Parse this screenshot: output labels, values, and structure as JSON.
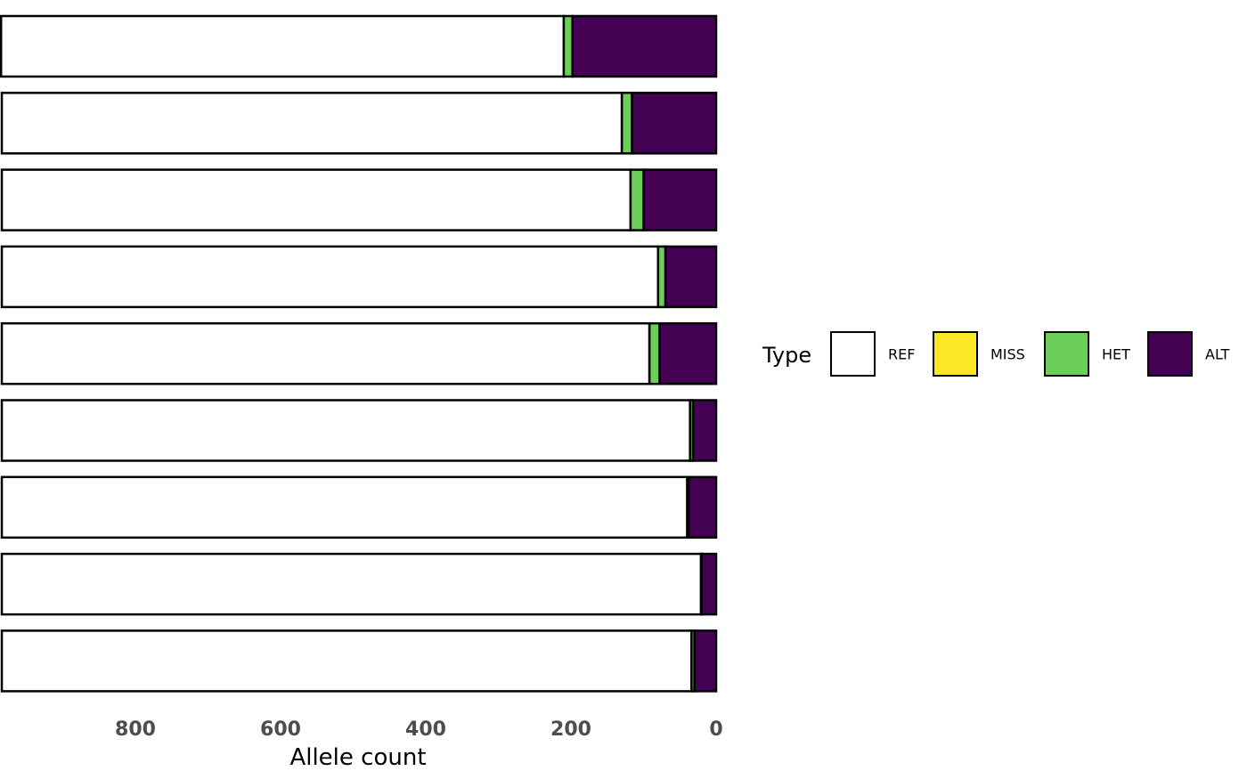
{
  "chart_data": {
    "type": "bar",
    "orientation": "horizontal",
    "stacked": true,
    "x_reversed": true,
    "xlabel": "Allele count",
    "ylabel": "",
    "xlim": [
      0,
      984
    ],
    "x_ticks": [
      800,
      600,
      400,
      200,
      0
    ],
    "grid": false,
    "legend": {
      "title": "Type",
      "placement": "right",
      "entries": [
        {
          "label": "REF",
          "color": "#FFFFFF"
        },
        {
          "label": "MISS",
          "color": "#FDE725"
        },
        {
          "label": "HET",
          "color": "#6DCD59"
        },
        {
          "label": "ALT",
          "color": "#440154"
        }
      ]
    },
    "stack_order_from_zero": [
      "ALT",
      "MISS",
      "HET",
      "REF"
    ],
    "bars": [
      {
        "ALT": 198,
        "MISS": 0,
        "HET": 12,
        "REF": 775
      },
      {
        "ALT": 116,
        "MISS": 0,
        "HET": 14,
        "REF": 854
      },
      {
        "ALT": 100,
        "MISS": 0,
        "HET": 18,
        "REF": 866
      },
      {
        "ALT": 70,
        "MISS": 0,
        "HET": 10,
        "REF": 904
      },
      {
        "ALT": 78,
        "MISS": 0,
        "HET": 14,
        "REF": 892
      },
      {
        "ALT": 32,
        "MISS": 0,
        "HET": 4,
        "REF": 948
      },
      {
        "ALT": 38,
        "MISS": 0,
        "HET": 2,
        "REF": 944
      },
      {
        "ALT": 20,
        "MISS": 0,
        "HET": 1,
        "REF": 963
      },
      {
        "ALT": 30,
        "MISS": 0,
        "HET": 4,
        "REF": 950
      }
    ]
  }
}
